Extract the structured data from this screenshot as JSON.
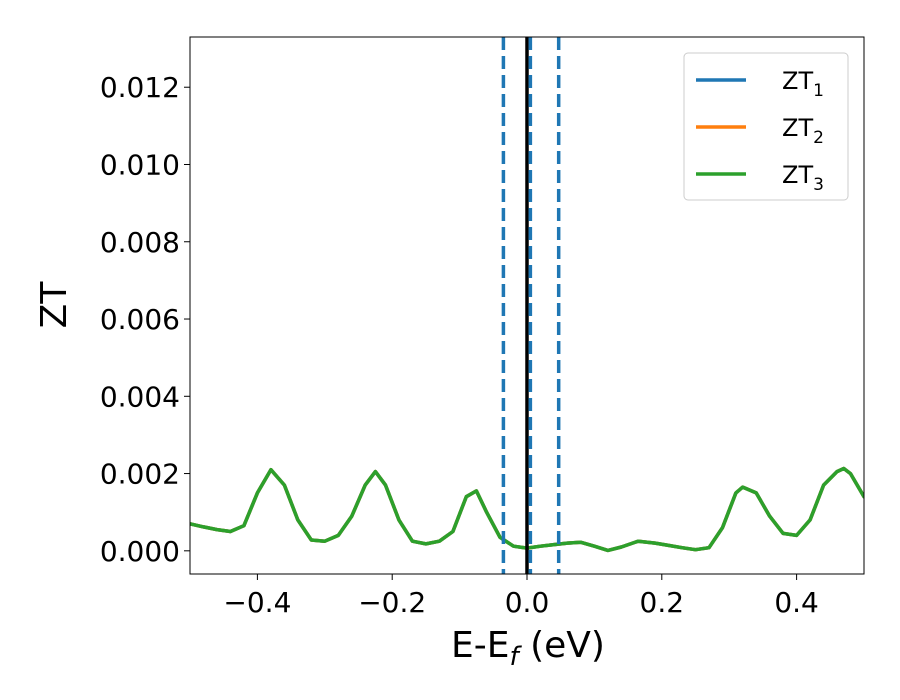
{
  "chart_data": {
    "type": "line",
    "title": "",
    "xlabel": "E-E",
    "xlabel_sub": "f",
    "xlabel_unit": " (eV)",
    "ylabel": "ZT",
    "xlim": [
      -0.5,
      0.5
    ],
    "ylim": [
      -0.0006,
      0.0133
    ],
    "x_ticks": [
      -0.4,
      -0.2,
      0.0,
      0.2,
      0.4
    ],
    "x_tick_labels": [
      "−0.4",
      "−0.2",
      "0.0",
      "0.2",
      "0.4"
    ],
    "y_ticks": [
      0.0,
      0.002,
      0.004,
      0.006,
      0.008,
      0.01,
      0.012
    ],
    "y_tick_labels": [
      "0.000",
      "0.002",
      "0.004",
      "0.006",
      "0.008",
      "0.010",
      "0.012"
    ],
    "grid": false,
    "legend_position": "top-right",
    "legend": [
      {
        "base": "ZT",
        "sub": "1",
        "color": "#1f77b4"
      },
      {
        "base": "ZT",
        "sub": "2",
        "color": "#ff7f0e"
      },
      {
        "base": "ZT",
        "sub": "3",
        "color": "#2ca02c"
      }
    ],
    "x": [
      -0.5,
      -0.48,
      -0.46,
      -0.44,
      -0.42,
      -0.4,
      -0.38,
      -0.36,
      -0.34,
      -0.32,
      -0.3,
      -0.28,
      -0.26,
      -0.24,
      -0.225,
      -0.21,
      -0.19,
      -0.17,
      -0.15,
      -0.13,
      -0.11,
      -0.09,
      -0.075,
      -0.06,
      -0.04,
      -0.02,
      0.0,
      0.02,
      0.04,
      0.06,
      0.08,
      0.1,
      0.12,
      0.14,
      0.165,
      0.19,
      0.21,
      0.23,
      0.25,
      0.27,
      0.29,
      0.31,
      0.32,
      0.34,
      0.36,
      0.38,
      0.4,
      0.42,
      0.44,
      0.46,
      0.47,
      0.48,
      0.5
    ],
    "series": [
      {
        "color": "#1f77b4",
        "values": [
          0.0007,
          0.00062,
          0.00055,
          0.0005,
          0.00065,
          0.0015,
          0.0021,
          0.0017,
          0.0008,
          0.00028,
          0.00025,
          0.0004,
          0.0009,
          0.0017,
          0.00205,
          0.0017,
          0.0008,
          0.00025,
          0.00018,
          0.00025,
          0.0005,
          0.0014,
          0.00155,
          0.001,
          0.00035,
          0.00012,
          7e-05,
          0.00012,
          0.00016,
          0.0002,
          0.00022,
          0.00012,
          1e-05,
          0.0001,
          0.00025,
          0.0002,
          0.00014,
          8e-05,
          3e-05,
          8e-05,
          0.0006,
          0.0015,
          0.00165,
          0.0015,
          0.0009,
          0.00045,
          0.0004,
          0.0008,
          0.0017,
          0.00205,
          0.00213,
          0.002,
          0.0014
        ]
      },
      {
        "color": "#ff7f0e",
        "values": [
          0.0007,
          0.00062,
          0.00055,
          0.0005,
          0.00065,
          0.0015,
          0.0021,
          0.0017,
          0.0008,
          0.00028,
          0.00025,
          0.0004,
          0.0009,
          0.0017,
          0.00205,
          0.0017,
          0.0008,
          0.00025,
          0.00018,
          0.00025,
          0.0005,
          0.0014,
          0.00155,
          0.001,
          0.00035,
          0.00012,
          7e-05,
          0.00012,
          0.00016,
          0.0002,
          0.00022,
          0.00012,
          1e-05,
          0.0001,
          0.00025,
          0.0002,
          0.00014,
          8e-05,
          3e-05,
          8e-05,
          0.0006,
          0.0015,
          0.00165,
          0.0015,
          0.0009,
          0.00045,
          0.0004,
          0.0008,
          0.0017,
          0.00205,
          0.00213,
          0.002,
          0.0014
        ]
      },
      {
        "color": "#2ca02c",
        "values": [
          0.0007,
          0.00062,
          0.00055,
          0.0005,
          0.00065,
          0.0015,
          0.0021,
          0.0017,
          0.0008,
          0.00028,
          0.00025,
          0.0004,
          0.0009,
          0.0017,
          0.00205,
          0.0017,
          0.0008,
          0.00025,
          0.00018,
          0.00025,
          0.0005,
          0.0014,
          0.00155,
          0.001,
          0.00035,
          0.00012,
          7e-05,
          0.00012,
          0.00016,
          0.0002,
          0.00022,
          0.00012,
          1e-05,
          0.0001,
          0.00025,
          0.0002,
          0.00014,
          8e-05,
          3e-05,
          8e-05,
          0.0006,
          0.0015,
          0.00165,
          0.0015,
          0.0009,
          0.00045,
          0.0004,
          0.0008,
          0.0017,
          0.00205,
          0.00213,
          0.002,
          0.0014
        ]
      }
    ],
    "vlines": [
      {
        "x": -0.035,
        "style": "dashed",
        "color": "#1f77b4"
      },
      {
        "x": 0.0,
        "style": "solid",
        "color": "#000000"
      },
      {
        "x": 0.005,
        "style": "dashed",
        "color": "#1f77b4"
      },
      {
        "x": 0.047,
        "style": "dashed",
        "color": "#1f77b4"
      }
    ]
  }
}
